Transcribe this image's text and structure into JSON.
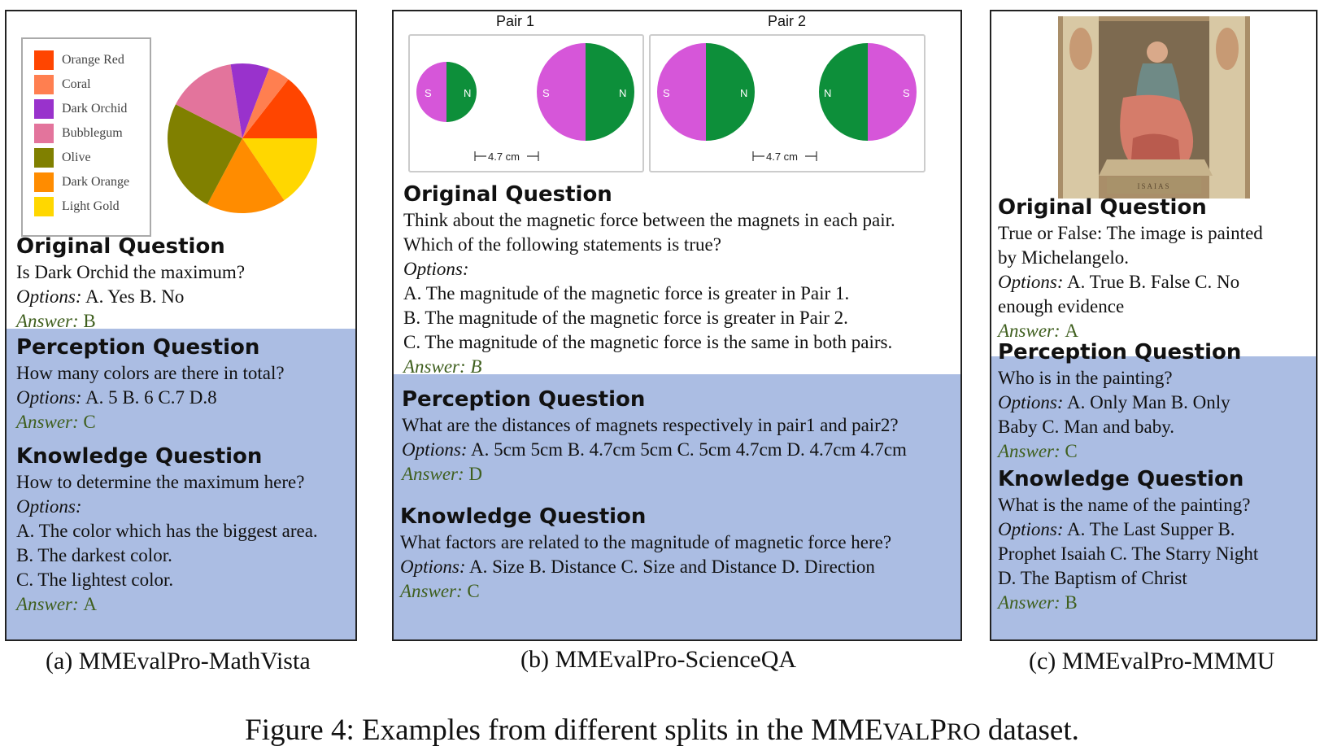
{
  "panel_a": {
    "legend": [
      {
        "label": "Orange Red",
        "color": "#ff4500"
      },
      {
        "label": "Coral",
        "color": "#ff7f50"
      },
      {
        "label": "Dark Orchid",
        "color": "#9932cc"
      },
      {
        "label": "Bubblegum",
        "color": "#e3749c"
      },
      {
        "label": "Olive",
        "color": "#808000"
      },
      {
        "label": "Dark Orange",
        "color": "#ff8c00"
      },
      {
        "label": "Light Gold",
        "color": "#ffd700"
      }
    ],
    "pie_slices": [
      {
        "label": "Orange Red",
        "color": "#ff4500",
        "start_deg": 38,
        "end_deg": 90
      },
      {
        "label": "Light Gold",
        "color": "#ffd700",
        "start_deg": 90,
        "end_deg": 146
      },
      {
        "label": "Dark Orange",
        "color": "#ff8c00",
        "start_deg": 146,
        "end_deg": 208
      },
      {
        "label": "Olive",
        "color": "#808000",
        "start_deg": 208,
        "end_deg": 297
      },
      {
        "label": "Bubblegum",
        "color": "#e3749c",
        "start_deg": 297,
        "end_deg": 351
      },
      {
        "label": "Dark Orchid",
        "color": "#9932cc",
        "start_deg": 351,
        "end_deg": 21
      },
      {
        "label": "Coral",
        "color": "#ff7f50",
        "start_deg": 21,
        "end_deg": 38
      }
    ],
    "original": {
      "heading": "Original Question",
      "question": "Is Dark Orchid the maximum?",
      "options_label": "Options:",
      "options": "A. Yes B. No",
      "answer_label": "Answer:",
      "answer": "B"
    },
    "perception": {
      "heading": "Perception Question",
      "question": "How many colors are there in total?",
      "options_label": "Options:",
      "options": "A. 5 B. 6 C.7 D.8",
      "answer_label": "Answer:",
      "answer": "C"
    },
    "knowledge": {
      "heading": "Knowledge Question",
      "question": "How to determine the maximum here?",
      "options_label": "Options:",
      "option_a": "A. The color which has the biggest area.",
      "option_b": "B. The darkest color.",
      "option_c": "C. The lightest color.",
      "answer_label": "Answer:",
      "answer": "A"
    },
    "caption": "(a) MMEvalPro-MathVista"
  },
  "panel_b": {
    "pair1_label": "Pair 1",
    "pair2_label": "Pair 2",
    "pole_s": "S",
    "pole_n": "N",
    "distance1": "4.7 cm",
    "distance2": "4.7 cm",
    "magnet_colors": {
      "s": "#d656d9",
      "n": "#0d8f3a"
    },
    "original": {
      "heading": "Original Question",
      "line1": "Think about the magnetic force between the magnets in each pair.",
      "line2": "Which of the following statements is true?",
      "options_label": "Options:",
      "option_a": "A. The magnitude of the magnetic force is greater in Pair 1.",
      "option_b": "B. The magnitude of the magnetic force is greater in Pair 2.",
      "option_c": "C. The magnitude of the magnetic force is the same in both pairs.",
      "answer": "Answer: B"
    },
    "perception": {
      "heading": "Perception Question",
      "question": "What are the distances of magnets respectively in pair1 and pair2?",
      "options_label": "Options:",
      "options": "A. 5cm 5cm B. 4.7cm 5cm C. 5cm 4.7cm D. 4.7cm 4.7cm",
      "answer_label": "Answer:",
      "answer": "D"
    },
    "knowledge": {
      "heading": "Knowledge Question",
      "question": "What factors are related to the magnitude of magnetic force here?",
      "options_label": "Options:",
      "options": "A. Size B. Distance C. Size and Distance D. Direction",
      "answer_label": "Answer:",
      "answer": "C"
    },
    "caption": "(b) MMEvalPro-ScienceQA"
  },
  "panel_c": {
    "original": {
      "heading": "Original Question",
      "line1": "True or False: The image is painted",
      "line2": "by Michelangelo.",
      "options_label": "Options:",
      "options_line1": "A. True B. False C. No",
      "options_line2": "enough evidence",
      "answer_label": "Answer:",
      "answer": "A"
    },
    "perception": {
      "heading": "Perception Question",
      "question": "Who is in the painting?",
      "options_label": "Options:",
      "options_line1": "A. Only Man B. Only",
      "options_line2": "Baby C. Man and baby.",
      "answer_label": "Answer:",
      "answer": "C"
    },
    "knowledge": {
      "heading": "Knowledge Question",
      "question": "What is the name of the painting?",
      "options_label": "Options:",
      "options_line1": "A. The Last Supper B.",
      "options_line2": "Prophet Isaiah C. The Starry Night",
      "options_line3": "D. The Baptism of Christ",
      "answer_label": "Answer:",
      "answer": "B"
    },
    "caption": "(c) MMEvalPro-MMMU"
  },
  "figure": {
    "prefix": "Figure 4: Examples from different splits in the MME",
    "sc": "VAL",
    "mid": "P",
    "sc2": "RO",
    "suffix": " dataset."
  }
}
